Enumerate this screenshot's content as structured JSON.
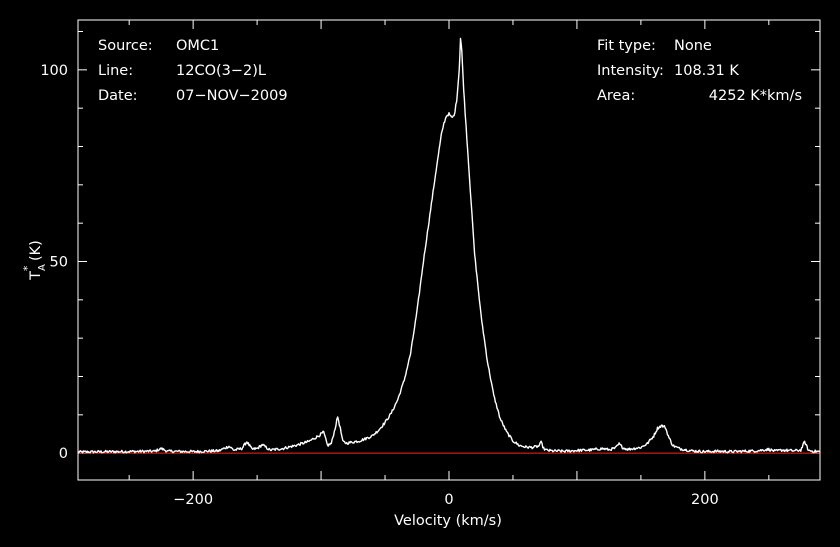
{
  "header": {
    "source_label": "Source:",
    "source_value": "OMC1",
    "line_label": "Line:",
    "line_value": "12CO(3−2)L",
    "date_label": "Date:",
    "date_value": "07−NOV−2009",
    "fit_label": "Fit type:",
    "fit_value": "None",
    "intensity_label": "Intensity:",
    "intensity_value": "108.31 K",
    "area_label": "Area:",
    "area_value": "4252 K*km/s"
  },
  "chart_data": {
    "type": "line",
    "title": "",
    "xlabel": "Velocity (km/s)",
    "ylabel_main": "T",
    "ylabel_sup": "*",
    "ylabel_sub": "A",
    "ylabel_unit": " (K)",
    "xlim": [
      -290,
      290
    ],
    "ylim": [
      -7,
      113
    ],
    "xticks": [
      {
        "value": -200,
        "label": "−200"
      },
      {
        "value": 0,
        "label": "0"
      },
      {
        "value": 200,
        "label": "200"
      }
    ],
    "yticks": [
      {
        "value": 0,
        "label": "0"
      },
      {
        "value": 50,
        "label": "50"
      },
      {
        "value": 100,
        "label": "100"
      }
    ],
    "grid": false,
    "colors": {
      "background": "#000000",
      "axes": "#ffffff",
      "spectrum": "#ffffff",
      "baseline": "#ff2020"
    },
    "baseline": 0,
    "series": [
      {
        "x": [
          -290,
          -260,
          -230,
          -225,
          -220,
          -200,
          -180,
          -172,
          -168,
          -162,
          -158,
          -154,
          -150,
          -146,
          -140,
          -130,
          -120,
          -110,
          -102,
          -98,
          -95,
          -92,
          -89,
          -87,
          -85,
          -83,
          -80,
          -75,
          -70,
          -65,
          -60,
          -55,
          -50,
          -45,
          -40,
          -35,
          -30,
          -25,
          -20,
          -15,
          -10,
          -6,
          -4,
          -2,
          0,
          2,
          4,
          6,
          8,
          9,
          10,
          11,
          12,
          14,
          16,
          18,
          20,
          25,
          30,
          35,
          40,
          45,
          50,
          55,
          60,
          65,
          70,
          72,
          74,
          76,
          80,
          90,
          100,
          110,
          120,
          125,
          130,
          133,
          136,
          140,
          150,
          155,
          160,
          163,
          166,
          169,
          172,
          175,
          180,
          190,
          200,
          210,
          220,
          240,
          250,
          255,
          260,
          270,
          275,
          278,
          281,
          285,
          290
        ],
        "y": [
          0.3,
          0.4,
          0.5,
          1.2,
          0.5,
          0.4,
          0.6,
          1.8,
          0.8,
          1.2,
          3.0,
          1.0,
          1.2,
          2.2,
          0.8,
          1.2,
          2.0,
          3.0,
          4.5,
          5.5,
          2.0,
          2.5,
          6.5,
          9.5,
          6.5,
          3.0,
          2.6,
          2.9,
          3.2,
          3.8,
          4.5,
          6.0,
          8.0,
          10.5,
          14.0,
          19.0,
          26.0,
          37.0,
          50.0,
          62.0,
          74.0,
          83.0,
          86.0,
          88.0,
          88.5,
          87.5,
          88.0,
          92.0,
          100.0,
          108.3,
          105.0,
          98.0,
          92.0,
          82.0,
          72.0,
          62.0,
          52.0,
          36.0,
          24.0,
          15.0,
          9.0,
          5.5,
          3.2,
          2.0,
          1.6,
          1.5,
          1.8,
          2.8,
          1.2,
          0.8,
          0.6,
          0.5,
          0.7,
          0.8,
          1.2,
          0.9,
          1.3,
          2.4,
          1.4,
          1.0,
          1.5,
          2.5,
          4.5,
          6.5,
          7.2,
          6.8,
          4.0,
          2.0,
          1.2,
          0.6,
          0.4,
          0.5,
          0.4,
          0.6,
          1.0,
          0.5,
          0.8,
          0.6,
          0.8,
          3.0,
          0.7,
          0.5,
          0.4
        ]
      }
    ]
  }
}
